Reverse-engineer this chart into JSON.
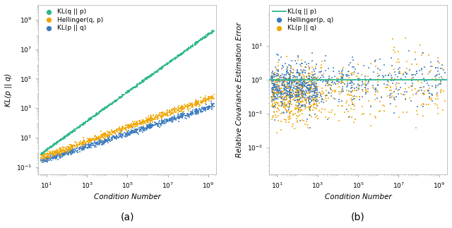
{
  "fig_width": 6.4,
  "fig_height": 3.23,
  "dpi": 100,
  "background_color": "#ffffff",
  "panel_a": {
    "xlabel": "Condition Number",
    "ylabel": "KL(p || q)",
    "legend": [
      {
        "label": "KL(q || p)",
        "color": "#2db88a"
      },
      {
        "label": "Hellinger(q, p)",
        "color": "#f0a500"
      },
      {
        "label": "KL(p || q)",
        "color": "#3a7abf"
      }
    ]
  },
  "panel_b": {
    "xlabel": "Condition Number",
    "ylabel": "Relative Covariance Estimation Error",
    "hline_y": 1.0,
    "hline_color": "#2db88a",
    "legend": [
      {
        "label": "KL(q || p)",
        "color": "#2db88a"
      },
      {
        "label": "Hellinger(p, q)",
        "color": "#3a7abf"
      },
      {
        "label": "KL(p || q)",
        "color": "#f0a500"
      }
    ]
  },
  "seed": 42,
  "n_points": 800,
  "color_kl_fwd": "#2db88a",
  "color_hellinger": "#f0a500",
  "color_kl_rev": "#3a7abf",
  "subtitle_a": "(a)",
  "subtitle_b": "(b)"
}
